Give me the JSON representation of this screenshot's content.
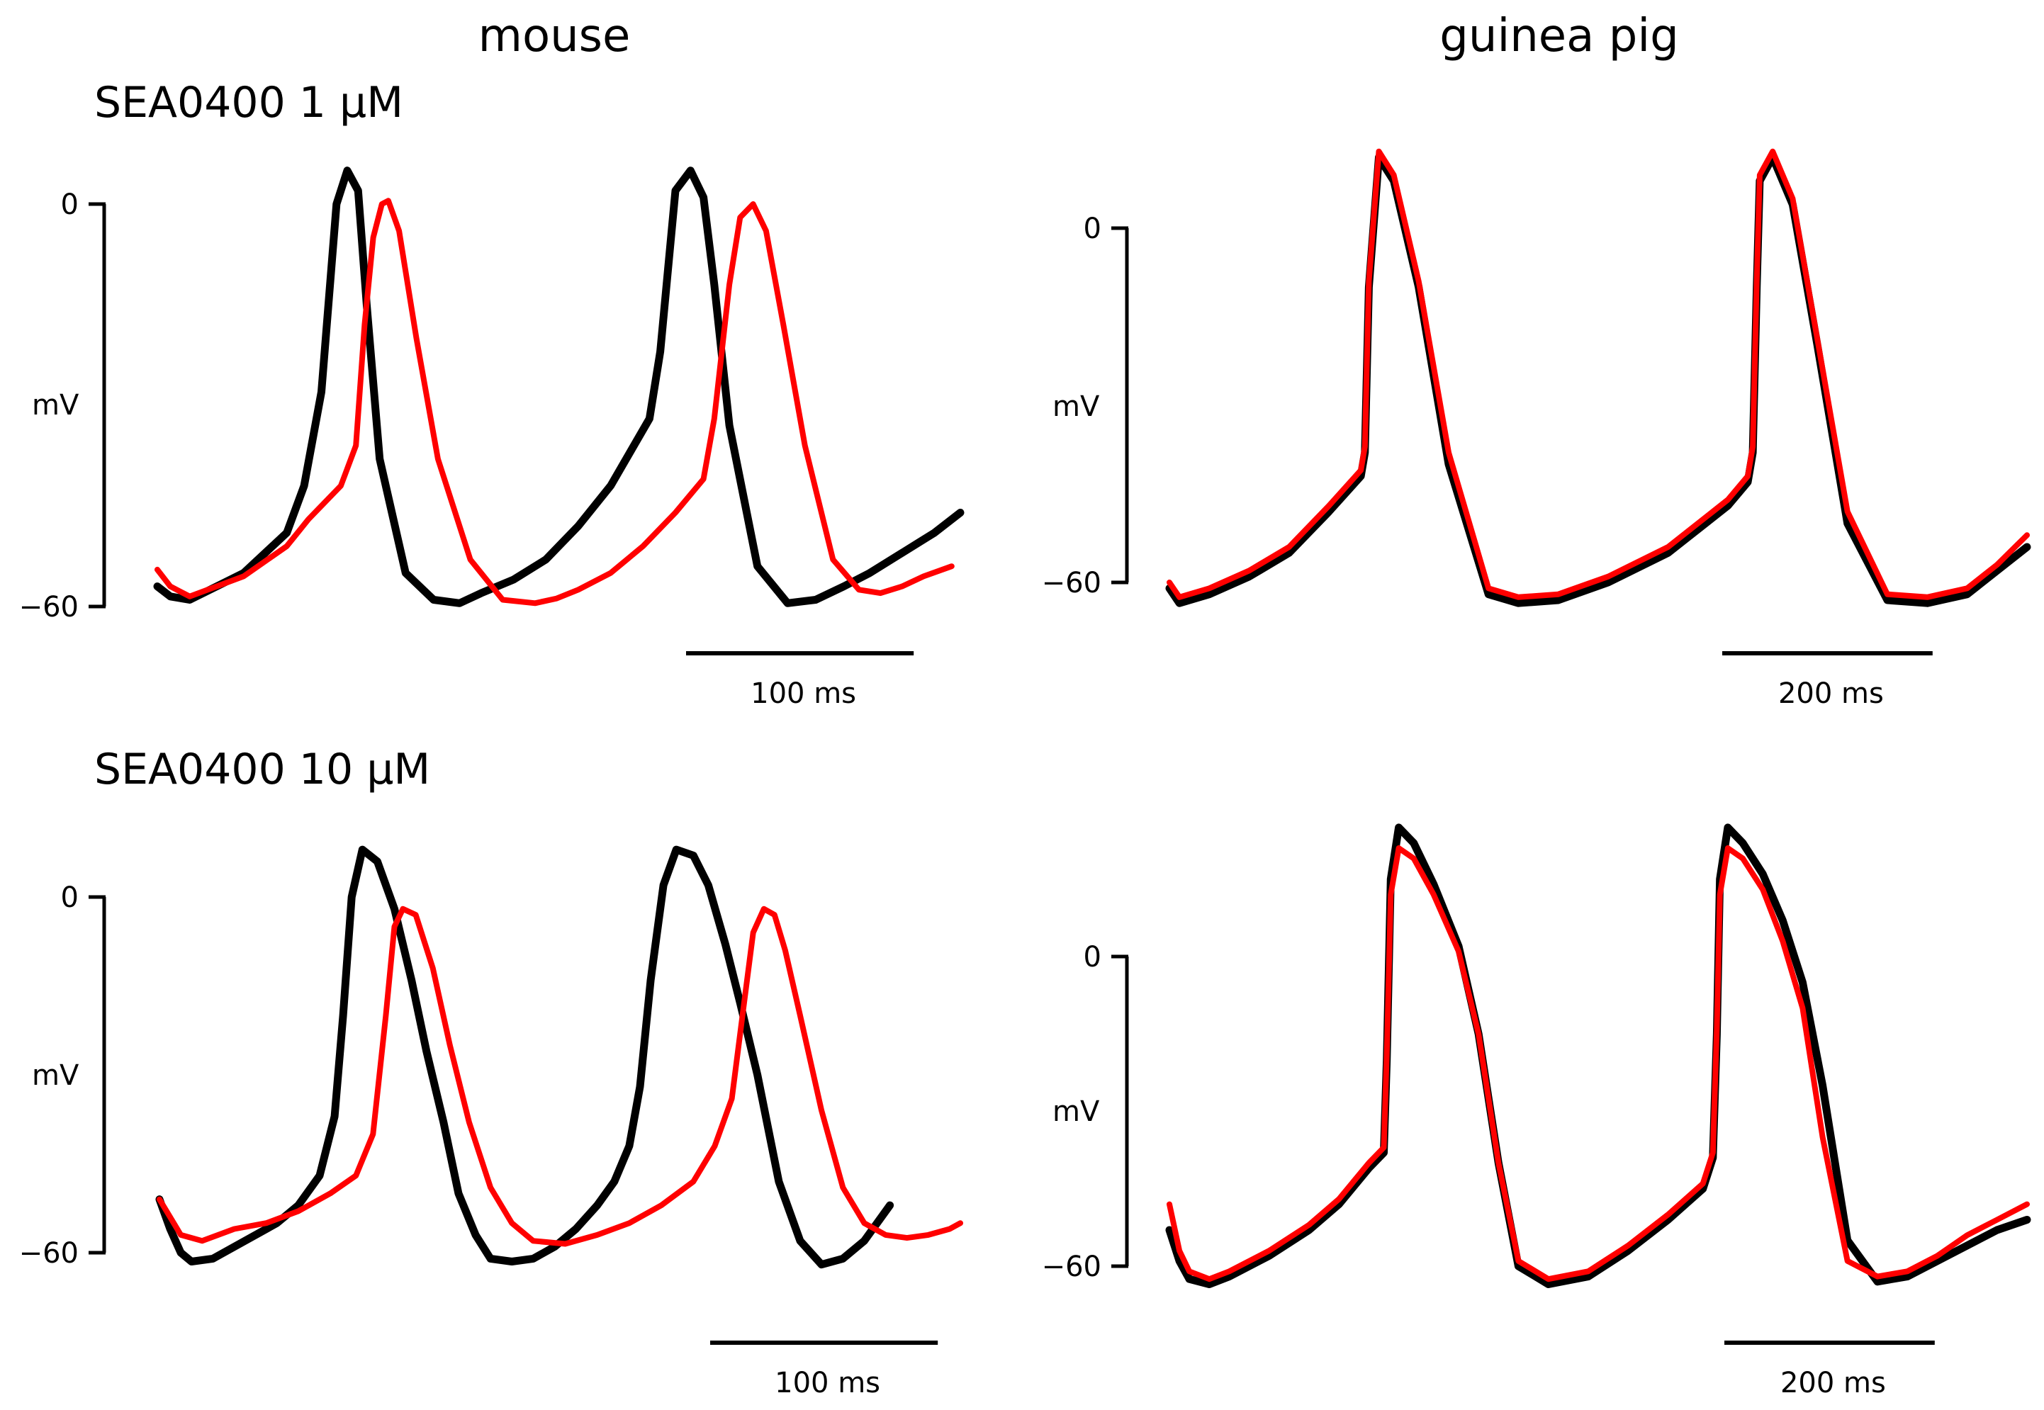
{
  "figure": {
    "column_titles": [
      "mouse",
      "guinea pig"
    ],
    "row_titles": [
      "SEA0400 1 μM",
      "SEA0400 10 μM"
    ],
    "colors": {
      "control": "#000000",
      "sea0400": "#ff0000"
    }
  },
  "chart_data": [
    {
      "type": "line",
      "panel": "mouse, SEA0400 1 μM",
      "ylabel": "mV",
      "ylim": [
        -66,
        10
      ],
      "yticks": [
        0,
        -60
      ],
      "scalebar": {
        "label": "100 ms",
        "ms": 100
      },
      "series": [
        {
          "color": "#000000",
          "x": [
            0,
            6,
            15,
            40,
            60,
            68,
            76,
            83,
            88,
            93,
            97,
            103,
            115,
            128,
            140,
            150,
            165,
            180,
            195,
            210,
            228,
            233,
            240,
            247,
            253,
            258,
            265,
            278,
            292,
            305,
            318,
            330,
            345,
            360,
            372
          ],
          "y": [
            -57,
            -58.5,
            -59,
            -55,
            -49,
            -42,
            -28,
            0,
            5,
            2,
            -15,
            -38,
            -55,
            -59,
            -59.5,
            -58,
            -56,
            -53,
            -48,
            -42,
            -32,
            -22,
            2,
            5,
            1,
            -12,
            -33,
            -54,
            -59.5,
            -59,
            -57,
            -55,
            -52,
            -49,
            -46
          ]
        },
        {
          "color": "#ff0000",
          "x": [
            0,
            6,
            15,
            40,
            60,
            70,
            85,
            92,
            96,
            100,
            104,
            107,
            112,
            120,
            130,
            145,
            160,
            175,
            185,
            195,
            210,
            225,
            240,
            253,
            258,
            265,
            270,
            276,
            282,
            290,
            300,
            313,
            325,
            335,
            345,
            355,
            368
          ],
          "y": [
            -54.5,
            -57,
            -58.5,
            -55.5,
            -51,
            -47,
            -42,
            -36,
            -18,
            -5,
            0,
            0.5,
            -4,
            -20,
            -38,
            -53,
            -59,
            -59.5,
            -58.8,
            -57.5,
            -55,
            -51,
            -46,
            -41,
            -32,
            -12,
            -2,
            0,
            -4,
            -18,
            -36,
            -53,
            -57.5,
            -58,
            -57,
            -55.5,
            -54
          ]
        }
      ]
    },
    {
      "type": "line",
      "panel": "guinea pig, SEA0400 1 μM",
      "ylabel": "mV",
      "ylim": [
        -66,
        25
      ],
      "yticks": [
        0,
        -60
      ],
      "scalebar": {
        "label": "200 ms",
        "ms": 200
      },
      "series": [
        {
          "color": "#000000",
          "x": [
            0,
            10,
            40,
            80,
            120,
            160,
            192,
            196,
            200,
            210,
            225,
            250,
            280,
            320,
            350,
            390,
            440,
            500,
            560,
            580,
            585,
            589,
            592,
            605,
            625,
            650,
            680,
            720,
            760,
            800,
            830,
            860
          ],
          "y": [
            -61,
            -63.5,
            -62,
            -59,
            -55,
            -48,
            -42,
            -38,
            -10,
            12,
            8,
            -10,
            -40,
            -62,
            -63.5,
            -63,
            -60,
            -55,
            -47,
            -43,
            -38,
            -10,
            8,
            12,
            4,
            -20,
            -50,
            -63,
            -63.5,
            -62,
            -58,
            -54
          ]
        },
        {
          "color": "#ff0000",
          "x": [
            0,
            10,
            40,
            80,
            120,
            160,
            192,
            196,
            200,
            210,
            225,
            250,
            280,
            320,
            350,
            390,
            440,
            500,
            560,
            580,
            585,
            589,
            592,
            605,
            625,
            650,
            680,
            720,
            760,
            800,
            830,
            860
          ],
          "y": [
            -60,
            -62.5,
            -61,
            -58,
            -54,
            -47,
            -41,
            -37,
            -9,
            13,
            9,
            -9,
            -38,
            -61,
            -62.5,
            -62,
            -59,
            -54,
            -46,
            -42,
            -37,
            -9,
            9,
            13,
            5,
            -19,
            -48,
            -62,
            -62.5,
            -61,
            -57,
            -52
          ]
        }
      ]
    },
    {
      "type": "line",
      "panel": "mouse, SEA0400 10 μM",
      "ylabel": "mV",
      "ylim": [
        -66,
        20
      ],
      "yticks": [
        0,
        -60
      ],
      "scalebar": {
        "label": "100 ms",
        "ms": 100
      },
      "series": [
        {
          "color": "#000000",
          "x": [
            0,
            5,
            10,
            15,
            25,
            40,
            55,
            65,
            75,
            82,
            86,
            90,
            95,
            102,
            110,
            118,
            125,
            133,
            140,
            148,
            155,
            165,
            175,
            185,
            195,
            205,
            213,
            220,
            225,
            230,
            236,
            242,
            250,
            257,
            265,
            272,
            280,
            290,
            300,
            310,
            320,
            330,
            342
          ],
          "y": [
            -51,
            -56,
            -60,
            -61.5,
            -61,
            -58,
            -55,
            -52,
            -47,
            -37,
            -20,
            0,
            8,
            6,
            -2,
            -14,
            -26,
            -38,
            -50,
            -57,
            -61,
            -61.5,
            -61,
            -59,
            -56,
            -52,
            -48,
            -42,
            -32,
            -14,
            2,
            8,
            7,
            2,
            -8,
            -18,
            -30,
            -48,
            -58,
            -62,
            -61,
            -58,
            -52
          ]
        },
        {
          "color": "#ff0000",
          "x": [
            0,
            5,
            10,
            20,
            35,
            50,
            65,
            80,
            92,
            100,
            106,
            110,
            114,
            120,
            128,
            136,
            145,
            155,
            165,
            175,
            190,
            205,
            220,
            235,
            250,
            260,
            268,
            273,
            278,
            283,
            288,
            293,
            300,
            310,
            320,
            330,
            340,
            350,
            360,
            370,
            375
          ],
          "y": [
            -51,
            -54,
            -57,
            -58,
            -56,
            -55,
            -53,
            -50,
            -47,
            -40,
            -20,
            -5,
            -2,
            -3,
            -12,
            -25,
            -38,
            -49,
            -55,
            -58,
            -58.5,
            -57,
            -55,
            -52,
            -48,
            -42,
            -34,
            -20,
            -6,
            -2,
            -3,
            -9,
            -20,
            -36,
            -49,
            -55,
            -57,
            -57.5,
            -57,
            -56,
            -55
          ]
        }
      ]
    },
    {
      "type": "line",
      "panel": "guinea pig, SEA0400 10 μM",
      "ylabel": "mV",
      "ylim": [
        -66,
        25
      ],
      "yticks": [
        0,
        -60
      ],
      "scalebar": {
        "label": "200 ms",
        "ms": 200
      },
      "series": [
        {
          "color": "#000000",
          "x": [
            0,
            10,
            20,
            40,
            60,
            100,
            140,
            170,
            200,
            215,
            218,
            222,
            230,
            245,
            265,
            290,
            310,
            330,
            350,
            380,
            420,
            460,
            500,
            535,
            545,
            549,
            552,
            560,
            575,
            595,
            615,
            635,
            655,
            680,
            710,
            740,
            770,
            800,
            830,
            860
          ],
          "y": [
            -53,
            -59,
            -62.5,
            -63.5,
            -62,
            -58,
            -53,
            -48,
            -41,
            -38,
            -20,
            15,
            25,
            22,
            14,
            2,
            -15,
            -40,
            -60,
            -63.5,
            -62,
            -57,
            -51,
            -45,
            -39,
            -15,
            15,
            25,
            22,
            16,
            7,
            -5,
            -25,
            -55,
            -63,
            -62,
            -59,
            -56,
            -53,
            -51
          ]
        },
        {
          "color": "#ff0000",
          "x": [
            0,
            10,
            20,
            40,
            60,
            100,
            140,
            170,
            200,
            215,
            218,
            222,
            230,
            245,
            265,
            290,
            310,
            330,
            350,
            380,
            420,
            460,
            500,
            535,
            545,
            549,
            552,
            560,
            575,
            595,
            615,
            635,
            655,
            680,
            710,
            740,
            770,
            800,
            830,
            860
          ],
          "y": [
            -48,
            -57,
            -61,
            -62.5,
            -61,
            -57,
            -52,
            -47,
            -40,
            -37,
            -19,
            12,
            21,
            19,
            12,
            1,
            -15,
            -40,
            -59,
            -62.5,
            -61,
            -56,
            -50,
            -44,
            -38,
            -14,
            12,
            21,
            19,
            13,
            3,
            -10,
            -35,
            -59,
            -62,
            -61,
            -58,
            -54,
            -51,
            -48
          ]
        }
      ]
    }
  ]
}
